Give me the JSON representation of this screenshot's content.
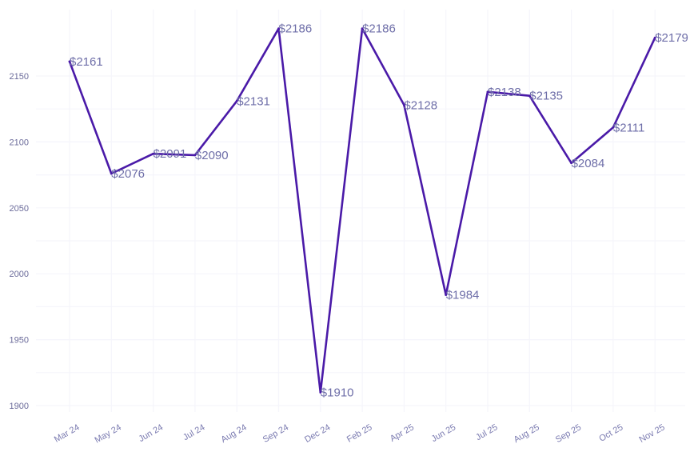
{
  "chart_data": {
    "type": "line",
    "title": "",
    "xlabel": "",
    "ylabel": "",
    "categories": [
      "Mar 24",
      "May 24",
      "Jun 24",
      "Jul 24",
      "Aug 24",
      "Sep 24",
      "Dec 24",
      "Feb 25",
      "Apr 25",
      "Jun 25",
      "Jul 25",
      "Aug 25",
      "Sep 25",
      "Oct 25",
      "Nov 25"
    ],
    "series": [
      {
        "values": [
          2161,
          2076,
          2091,
          2090,
          2131,
          2186,
          1910,
          2186,
          2128,
          1984,
          2138,
          2135,
          2084,
          2111,
          2179
        ],
        "data_labels": [
          "$2161",
          "$2076",
          "$2091",
          "$2090",
          "$2131",
          "$2186",
          "$1910",
          "$2186",
          "$2128",
          "$1984",
          "$2138",
          "$2135",
          "$2084",
          "$2111",
          "$2179"
        ]
      }
    ],
    "y_ticks": [
      1900,
      1950,
      2000,
      2050,
      2100,
      2150
    ],
    "ylim": [
      1900,
      2190
    ],
    "grid": true,
    "legend": "none",
    "colors": {
      "line": "#4a1aa8",
      "label": "#6e6ea8",
      "tick": "#7a7ab0",
      "grid": "#f5f5fb"
    }
  }
}
